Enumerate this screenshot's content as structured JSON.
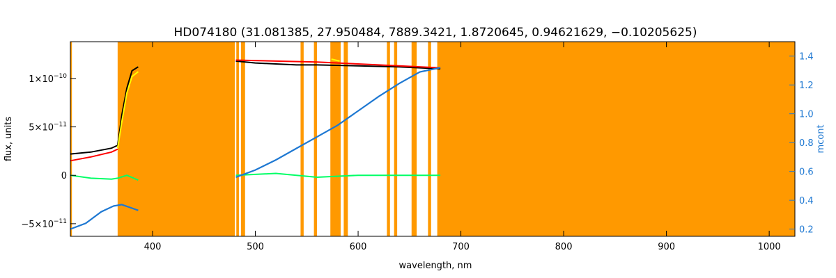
{
  "chart_data": {
    "type": "line",
    "title": "HD074180    (31.081385, 27.950484, 7889.3421, 1.8720645, 0.94621629, −0.10205625)",
    "xlabel": "wavelength, nm",
    "ylabel": "flux, units",
    "y2label": "mcont",
    "xlim": [
      320,
      1025
    ],
    "ylim": [
      -6.3e-11,
      1.38e-10
    ],
    "y2lim": [
      0.15,
      1.5
    ],
    "x_ticks": [
      400,
      500,
      600,
      700,
      800,
      900,
      1000
    ],
    "x_tick_labels": [
      "400",
      "500",
      "600",
      "700",
      "800",
      "900",
      "1000"
    ],
    "y_ticks": [
      -5e-11,
      0,
      5e-11,
      1e-10
    ],
    "y_tick_labels": [
      {
        "mant": "−5×10",
        "exp": "−11"
      },
      {
        "mant": "0",
        "exp": ""
      },
      {
        "mant": "5×10",
        "exp": "−11"
      },
      {
        "mant": "1×10",
        "exp": "−10"
      }
    ],
    "y2_ticks": [
      0.2,
      0.4,
      0.6,
      0.8,
      1.0,
      1.2,
      1.4
    ],
    "y2_tick_labels": [
      "0.2",
      "0.4",
      "0.6",
      "0.8",
      "1.0",
      "1.2",
      "1.4"
    ],
    "masked_regions": [
      [
        320,
        321.5
      ],
      [
        366,
        480
      ],
      [
        481.5,
        484
      ],
      [
        486,
        490
      ],
      [
        544,
        547
      ],
      [
        557,
        560
      ],
      [
        573,
        583
      ],
      [
        586,
        590
      ],
      [
        628,
        631
      ],
      [
        635,
        638
      ],
      [
        652,
        657
      ],
      [
        668,
        671
      ],
      [
        677,
        1025
      ]
    ],
    "series": [
      {
        "color": "#000000",
        "segments": [
          [
            [
              320,
              2.2e-11
            ],
            [
              340,
              2.4e-11
            ],
            [
              360,
              2.8e-11
            ],
            [
              366,
              3.1e-11
            ],
            [
              370,
              6.2e-11
            ],
            [
              375,
              9e-11
            ],
            [
              380,
              1.08e-10
            ],
            [
              386,
              1.12e-10
            ]
          ],
          [
            [
              481,
              1.18e-10
            ],
            [
              500,
              1.16e-10
            ],
            [
              520,
              1.15e-10
            ],
            [
              540,
              1.14e-10
            ],
            [
              560,
              1.14e-10
            ],
            [
              600,
              1.13e-10
            ],
            [
              640,
              1.12e-10
            ],
            [
              680,
              1.1e-10
            ]
          ]
        ]
      },
      {
        "color": "#ff0000",
        "segments": [
          [
            [
              320,
              1.5e-11
            ],
            [
              340,
              1.9e-11
            ],
            [
              360,
              2.4e-11
            ],
            [
              366,
              2.7e-11
            ]
          ],
          [
            [
              481,
              1.19e-10
            ],
            [
              520,
              1.18e-10
            ],
            [
              560,
              1.17e-10
            ],
            [
              600,
              1.15e-10
            ],
            [
              640,
              1.13e-10
            ],
            [
              680,
              1.11e-10
            ]
          ]
        ]
      },
      {
        "color": "#ffff00",
        "segments": [
          [
            [
              366,
              2.8e-11
            ],
            [
              370,
              5.5e-11
            ],
            [
              375,
              8.5e-11
            ],
            [
              380,
              1.02e-10
            ],
            [
              386,
              1.07e-10
            ]
          ],
          [
            [
              574,
              1.2e-10
            ],
            [
              582,
              1.18e-10
            ]
          ]
        ]
      },
      {
        "color": "#00ff66",
        "segments": [
          [
            [
              320,
              0.0
            ],
            [
              340,
              -3e-12
            ],
            [
              360,
              -4e-12
            ],
            [
              366,
              -3e-12
            ],
            [
              375,
              0.0
            ],
            [
              386,
              -5e-12
            ]
          ],
          [
            [
              481,
              0.0
            ],
            [
              520,
              2e-12
            ],
            [
              560,
              -2e-12
            ],
            [
              600,
              0.0
            ],
            [
              640,
              0.0
            ],
            [
              680,
              0.0
            ]
          ]
        ]
      },
      {
        "color": "#1e78d2",
        "axis": "right",
        "segments": [
          [
            [
              320,
              0.2
            ],
            [
              335,
              0.24
            ],
            [
              350,
              0.32
            ],
            [
              362,
              0.36
            ],
            [
              370,
              0.37
            ],
            [
              378,
              0.35
            ],
            [
              386,
              0.33
            ]
          ],
          [
            [
              481,
              0.56
            ],
            [
              500,
              0.61
            ],
            [
              520,
              0.68
            ],
            [
              540,
              0.76
            ],
            [
              560,
              0.84
            ],
            [
              580,
              0.92
            ],
            [
              600,
              1.02
            ],
            [
              620,
              1.12
            ],
            [
              640,
              1.21
            ],
            [
              660,
              1.29
            ],
            [
              680,
              1.32
            ]
          ]
        ]
      }
    ],
    "grid": false,
    "legend": "none"
  }
}
